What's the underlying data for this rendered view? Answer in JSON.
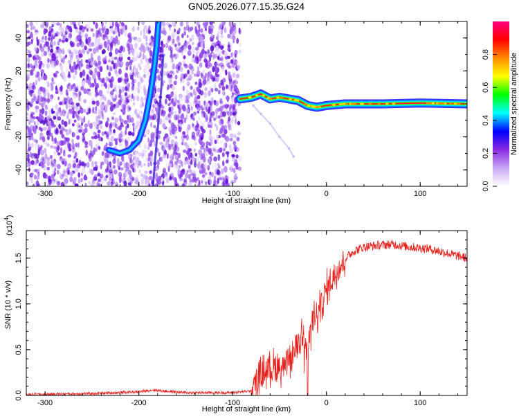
{
  "figure": {
    "title": "GN05.2026.077.15.35.G24"
  },
  "chart_data": [
    {
      "type": "heatmap",
      "title": "GN05.2026.077.15.35.G24",
      "xlabel": "Height of straight line (km)",
      "ylabel": "Frequency (Hz)",
      "xlim": [
        -320,
        150
      ],
      "ylim": [
        -50,
        50
      ],
      "xticks": [
        -300,
        -200,
        -100,
        0,
        100
      ],
      "yticks": [
        -40,
        -20,
        0,
        20,
        40
      ],
      "colorbar": {
        "label": "Normalized spectral amplitude",
        "range": [
          0,
          1
        ],
        "ticks": [
          0.0,
          0.2,
          0.4,
          0.6,
          0.8
        ],
        "tick_labels": [
          "0.0",
          "0.2",
          "0.4",
          "0.6",
          "0.8"
        ],
        "colors": [
          "#ffffff",
          "#c9a8f5",
          "#8a2be2",
          "#0000ff",
          "#00ffff",
          "#00ff00",
          "#ffff00",
          "#ff8c00",
          "#ff0000",
          "#ff0080"
        ]
      },
      "features": {
        "noise_region_x": [
          -320,
          -92
        ],
        "noise_color": "#7a1fe0",
        "signal_track": [
          {
            "x": -92,
            "y": 3
          },
          {
            "x": -80,
            "y": 4
          },
          {
            "x": -70,
            "y": 6
          },
          {
            "x": -60,
            "y": 3
          },
          {
            "x": -50,
            "y": 4
          },
          {
            "x": -40,
            "y": 3
          },
          {
            "x": -30,
            "y": 2
          },
          {
            "x": -20,
            "y": -1
          },
          {
            "x": -10,
            "y": -2
          },
          {
            "x": 0,
            "y": -1
          },
          {
            "x": 20,
            "y": 0
          },
          {
            "x": 60,
            "y": 0
          },
          {
            "x": 100,
            "y": 0.5
          },
          {
            "x": 150,
            "y": 0
          }
        ],
        "curved_trace": [
          {
            "x": -232,
            "y": -28
          },
          {
            "x": -220,
            "y": -30
          },
          {
            "x": -210,
            "y": -28
          },
          {
            "x": -200,
            "y": -22
          },
          {
            "x": -193,
            "y": -10
          },
          {
            "x": -188,
            "y": 5
          },
          {
            "x": -184,
            "y": 20
          },
          {
            "x": -181,
            "y": 35
          },
          {
            "x": -179,
            "y": 50
          }
        ],
        "faint_descending": [
          {
            "x": -78,
            "y": -1
          },
          {
            "x": -70,
            "y": -6
          },
          {
            "x": -60,
            "y": -12
          },
          {
            "x": -50,
            "y": -20
          },
          {
            "x": -40,
            "y": -27
          },
          {
            "x": -35,
            "y": -32
          }
        ]
      }
    },
    {
      "type": "line",
      "xlabel": "Height of straight line (km)",
      "ylabel": "SNR (10 * v/v)",
      "y_multiplier": "(x10",
      "y_multiplier_exp": "4",
      "y_multiplier_close": ")",
      "xlim": [
        -320,
        150
      ],
      "ylim": [
        0,
        1.8
      ],
      "xticks": [
        -300,
        -200,
        -100,
        0,
        100
      ],
      "yticks": [
        0.0,
        0.5,
        1.0,
        1.5
      ],
      "ytick_labels": [
        "0.0",
        "0.5",
        "1.0",
        "1.5"
      ],
      "series": [
        {
          "color": "#e8201c",
          "x": [
            -320,
            -250,
            -200,
            -185,
            -175,
            -150,
            -100,
            -80,
            -72,
            -65,
            -55,
            -45,
            -38,
            -30,
            -25,
            -20,
            -15,
            -10,
            -5,
            0,
            10,
            20,
            30,
            40,
            55,
            70,
            90,
            110,
            130,
            150
          ],
          "y": [
            0.01,
            0.02,
            0.04,
            0.06,
            0.05,
            0.03,
            0.03,
            0.05,
            0.2,
            0.28,
            0.32,
            0.3,
            0.4,
            0.55,
            0.75,
            0.5,
            0.8,
            0.85,
            1.0,
            1.15,
            1.35,
            1.5,
            1.58,
            1.62,
            1.64,
            1.65,
            1.62,
            1.6,
            1.55,
            1.5
          ]
        }
      ]
    }
  ]
}
